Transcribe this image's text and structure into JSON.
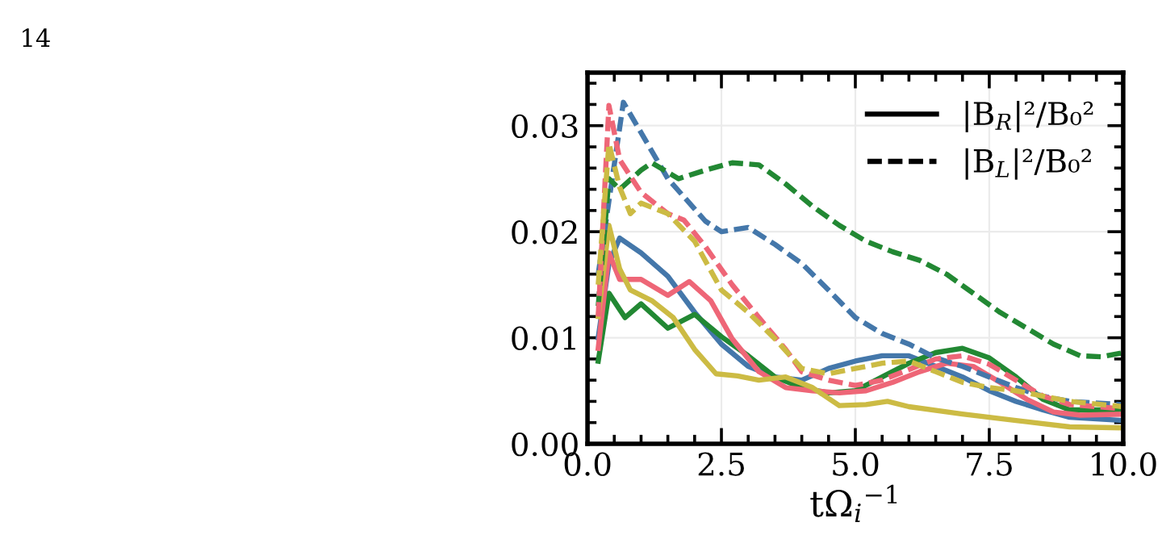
{
  "chart_data": {
    "type": "line",
    "xlabel": "tΩ$_{i}$$^{−1}$",
    "xlim": [
      0,
      10
    ],
    "xticks": [
      {
        "value": 0,
        "label": "0.0"
      },
      {
        "value": 2.5,
        "label": "2.5"
      },
      {
        "value": 5,
        "label": "5.0"
      },
      {
        "value": 7.5,
        "label": "7.5"
      },
      {
        "value": 10,
        "label": "10.0"
      }
    ],
    "ylim": [
      0,
      0.035
    ],
    "yticks": [
      {
        "value": 0,
        "label": "0.00"
      },
      {
        "value": 0.01,
        "label": "0.01"
      },
      {
        "value": 0.02,
        "label": "0.02"
      },
      {
        "value": 0.03,
        "label": "0.03"
      }
    ],
    "grid": true,
    "marker": "none",
    "annotations": [
      "14",
      "|B$_{R}$|²/B₀²",
      "|B$_{L}$|²/B₀²"
    ],
    "series": [
      {
        "color": "#4477aa",
        "line_style": "solid",
        "x": [
          0.2,
          0.4,
          0.6,
          1.0,
          1.5,
          2.0,
          2.5,
          3.0,
          3.5,
          4.0,
          4.5,
          5.0,
          5.5,
          6.0,
          6.5,
          7.0,
          7.5,
          8.0,
          8.5,
          9.0,
          10.0
        ],
        "values": [
          0.01,
          0.017,
          0.0194,
          0.018,
          0.0158,
          0.0124,
          0.0094,
          0.0073,
          0.0063,
          0.006,
          0.0071,
          0.0078,
          0.0083,
          0.0083,
          0.0073,
          0.0063,
          0.005,
          0.004,
          0.0032,
          0.0025,
          0.0022
        ]
      },
      {
        "color": "#228833",
        "line_style": "solid",
        "x": [
          0.2,
          0.4,
          0.7,
          1.0,
          1.5,
          2.0,
          2.5,
          3.0,
          3.5,
          4.0,
          4.5,
          5.0,
          5.5,
          6.0,
          6.5,
          7.0,
          7.5,
          8.0,
          8.5,
          9.0,
          10.0
        ],
        "values": [
          0.0078,
          0.0142,
          0.0119,
          0.0132,
          0.0109,
          0.0122,
          0.0101,
          0.0083,
          0.0063,
          0.0053,
          0.0048,
          0.005,
          0.0063,
          0.0076,
          0.0086,
          0.009,
          0.0081,
          0.0063,
          0.0042,
          0.0032,
          0.0032
        ]
      },
      {
        "color": "#ee6677",
        "line_style": "solid",
        "x": [
          0.2,
          0.4,
          0.6,
          1.0,
          1.5,
          1.9,
          2.3,
          2.7,
          3.2,
          3.7,
          4.2,
          4.7,
          5.2,
          5.7,
          6.2,
          6.7,
          7.2,
          7.7,
          8.2,
          8.7,
          9.2,
          10.0
        ],
        "values": [
          0.009,
          0.018,
          0.0155,
          0.0155,
          0.014,
          0.0153,
          0.0135,
          0.0099,
          0.0068,
          0.0053,
          0.005,
          0.0048,
          0.005,
          0.0058,
          0.0068,
          0.0076,
          0.0073,
          0.0058,
          0.0042,
          0.003,
          0.0027,
          0.0028
        ]
      },
      {
        "color": "#ccbb44",
        "line_style": "solid",
        "x": [
          0.2,
          0.4,
          0.6,
          0.8,
          1.2,
          1.6,
          2.0,
          2.4,
          2.8,
          3.2,
          3.7,
          4.2,
          4.7,
          5.2,
          5.6,
          6.0,
          7.0,
          8.0,
          9.0,
          10.0
        ],
        "values": [
          0.012,
          0.0206,
          0.0165,
          0.0145,
          0.0135,
          0.0119,
          0.0089,
          0.0066,
          0.0064,
          0.006,
          0.0063,
          0.0053,
          0.0036,
          0.0037,
          0.004,
          0.0035,
          0.0028,
          0.0022,
          0.0016,
          0.0015
        ]
      },
      {
        "color": "#4477aa",
        "line_style": "dashed",
        "x": [
          0.2,
          0.67,
          1.5,
          2.2,
          2.5,
          3.0,
          3.5,
          4.0,
          4.5,
          5.0,
          5.5,
          6.0,
          6.5,
          7.0,
          7.5,
          8.0,
          8.5,
          9.0,
          10.0
        ],
        "values": [
          0.016,
          0.0322,
          0.025,
          0.021,
          0.02,
          0.0204,
          0.0188,
          0.017,
          0.0145,
          0.0119,
          0.0104,
          0.0094,
          0.0081,
          0.0073,
          0.0063,
          0.0053,
          0.0045,
          0.004,
          0.0037
        ]
      },
      {
        "color": "#228833",
        "line_style": "dashed",
        "x": [
          0.2,
          0.4,
          0.6,
          1.0,
          1.2,
          1.7,
          2.2,
          2.7,
          3.2,
          3.7,
          4.2,
          4.7,
          5.2,
          5.7,
          6.2,
          6.7,
          7.2,
          7.7,
          8.2,
          8.7,
          9.2,
          9.6,
          10.0
        ],
        "values": [
          0.013,
          0.025,
          0.024,
          0.0258,
          0.0265,
          0.025,
          0.0258,
          0.0265,
          0.0263,
          0.0245,
          0.0224,
          0.0206,
          0.0191,
          0.0181,
          0.0173,
          0.016,
          0.0142,
          0.0124,
          0.0109,
          0.0094,
          0.0083,
          0.0082,
          0.0086
        ]
      },
      {
        "color": "#ee6677",
        "line_style": "dashed",
        "x": [
          0.2,
          0.4,
          0.6,
          1.0,
          1.5,
          1.8,
          2.2,
          2.7,
          3.2,
          3.7,
          4.0,
          4.5,
          5.0,
          5.5,
          6.0,
          6.5,
          7.0,
          7.5,
          8.0,
          8.5,
          9.0,
          10.0
        ],
        "values": [
          0.012,
          0.0319,
          0.0268,
          0.0237,
          0.0217,
          0.0211,
          0.0186,
          0.015,
          0.0119,
          0.0089,
          0.0068,
          0.006,
          0.0055,
          0.006,
          0.007,
          0.008,
          0.0083,
          0.0075,
          0.006,
          0.0045,
          0.0037,
          0.0033
        ]
      },
      {
        "color": "#ccbb44",
        "line_style": "dashed",
        "x": [
          0.2,
          0.4,
          0.6,
          0.8,
          1.0,
          1.5,
          2.0,
          2.5,
          3.0,
          3.5,
          4.0,
          4.5,
          5.0,
          5.5,
          6.0,
          6.5,
          7.0,
          7.5,
          8.0,
          8.5,
          9.0,
          10.0
        ],
        "values": [
          0.015,
          0.0283,
          0.0242,
          0.0217,
          0.0227,
          0.0217,
          0.0191,
          0.0145,
          0.0124,
          0.0099,
          0.0071,
          0.0066,
          0.0071,
          0.0076,
          0.0078,
          0.0068,
          0.0058,
          0.0053,
          0.005,
          0.0045,
          0.004,
          0.0035
        ]
      }
    ]
  }
}
